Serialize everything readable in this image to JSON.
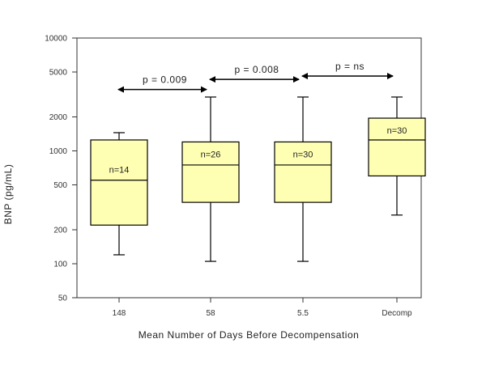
{
  "chart_data": {
    "type": "box",
    "title": "",
    "xlabel": "Mean Number of Days Before Decompensation",
    "ylabel": "BNP (pg/mL)",
    "yscale": "log",
    "ylim": [
      50,
      10000
    ],
    "yticks": [
      50,
      100,
      200,
      500,
      1000,
      2000,
      5000,
      10000
    ],
    "ytick_labels": [
      "50",
      "100",
      "200",
      "500",
      "1000",
      "2000",
      "5000",
      "10000"
    ],
    "categories": [
      "148",
      "58",
      "5.5",
      "Decomp"
    ],
    "boxes": [
      {
        "category": "148",
        "label": "n=14",
        "whisker_low": 120,
        "q1": 220,
        "median": 550,
        "q3": 1250,
        "whisker_high": 1450
      },
      {
        "category": "58",
        "label": "n=26",
        "whisker_low": 105,
        "q1": 350,
        "median": 750,
        "q3": 1200,
        "whisker_high": 3000
      },
      {
        "category": "5.5",
        "label": "n=30",
        "whisker_low": 105,
        "q1": 350,
        "median": 750,
        "q3": 1200,
        "whisker_high": 3000
      },
      {
        "category": "Decomp",
        "label": "n=30",
        "whisker_low": 270,
        "q1": 600,
        "median": 1250,
        "q3": 1950,
        "whisker_high": 3000
      }
    ],
    "comparisons": [
      {
        "from": "148",
        "to": "58",
        "label": "p = 0.009",
        "y": 3500
      },
      {
        "from": "58",
        "to": "5.5",
        "label": "p = 0.008",
        "y": 4300
      },
      {
        "from": "5.5",
        "to": "Decomp",
        "label": "p = ns",
        "y": 4600
      }
    ],
    "colors": {
      "box_fill": "#ffffb3",
      "stroke": "#000000"
    },
    "grid": false,
    "legend": "none"
  }
}
